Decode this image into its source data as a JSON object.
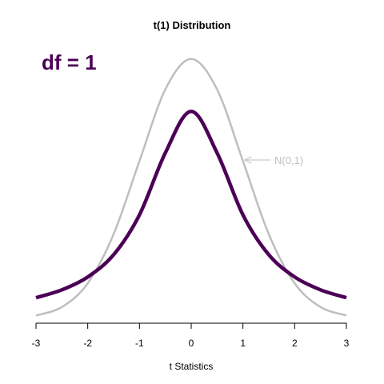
{
  "chart_data": {
    "type": "line",
    "title": "t(1) Distribution",
    "xlabel": "t Statistics",
    "ylabel": "",
    "xlim": [
      -3,
      3
    ],
    "ylim": [
      0,
      0.42
    ],
    "x_ticks": [
      "-3",
      "-2",
      "-1",
      "0",
      "1",
      "2",
      "3"
    ],
    "y_axis_shown": false,
    "grid": false,
    "series": [
      {
        "name": "N(0,1)",
        "color": "#bebebe",
        "x": [
          -3,
          -2.5,
          -2,
          -1.5,
          -1,
          -0.5,
          0,
          0.5,
          1,
          1.5,
          2,
          2.5,
          3
        ],
        "y": [
          0.0044,
          0.0175,
          0.054,
          0.1295,
          0.242,
          0.3521,
          0.3989,
          0.3521,
          0.242,
          0.1295,
          0.054,
          0.0175,
          0.0044
        ]
      },
      {
        "name": "t(1)",
        "color": "#4b0055",
        "x": [
          -3,
          -2.5,
          -2,
          -1.5,
          -1,
          -0.5,
          0,
          0.5,
          1,
          1.5,
          2,
          2.5,
          3
        ],
        "y": [
          0.0318,
          0.0439,
          0.0637,
          0.0979,
          0.1592,
          0.2546,
          0.3183,
          0.2546,
          0.1592,
          0.0979,
          0.0637,
          0.0439,
          0.0318
        ]
      }
    ],
    "annotations": [
      {
        "text": "df = 1",
        "color": "#4b0055",
        "placement": "top-left"
      },
      {
        "text": "N(0,1)",
        "color": "#bebebe",
        "arrow_to_x": 1,
        "arrow_to_series": "N(0,1)"
      }
    ]
  }
}
